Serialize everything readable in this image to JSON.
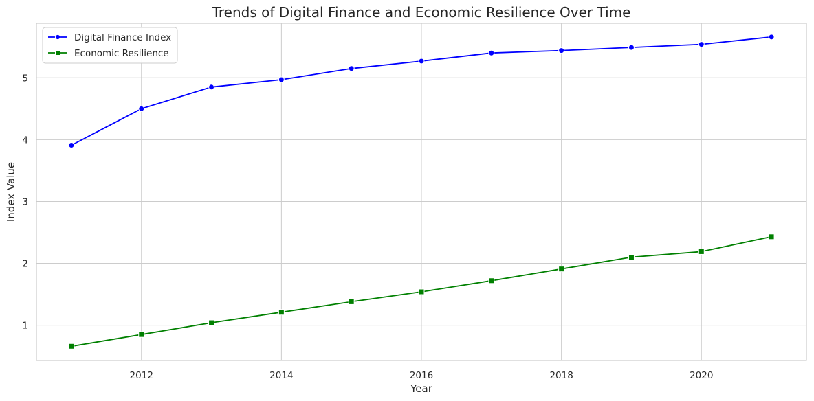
{
  "chart_data": {
    "type": "line",
    "title": "Trends of Digital Finance and Economic Resilience Over Time",
    "xlabel": "Year",
    "ylabel": "Index Value",
    "x": [
      2011,
      2012,
      2013,
      2014,
      2015,
      2016,
      2017,
      2018,
      2019,
      2020,
      2021
    ],
    "xlim": [
      2010.5,
      2021.5
    ],
    "ylim": [
      0.43,
      5.88
    ],
    "xticks": [
      2012,
      2014,
      2016,
      2018,
      2020
    ],
    "yticks": [
      1,
      2,
      3,
      4,
      5
    ],
    "grid": true,
    "legend_position": "top-left",
    "series": [
      {
        "name": "Digital Finance Index",
        "color": "#0000ff",
        "marker": "circle",
        "values": [
          3.91,
          4.5,
          4.85,
          4.97,
          5.15,
          5.27,
          5.4,
          5.44,
          5.49,
          5.54,
          5.66
        ]
      },
      {
        "name": "Economic Resilience",
        "color": "#008000",
        "marker": "square",
        "values": [
          0.66,
          0.85,
          1.04,
          1.21,
          1.38,
          1.54,
          1.72,
          1.91,
          2.1,
          2.19,
          2.43
        ]
      }
    ]
  }
}
